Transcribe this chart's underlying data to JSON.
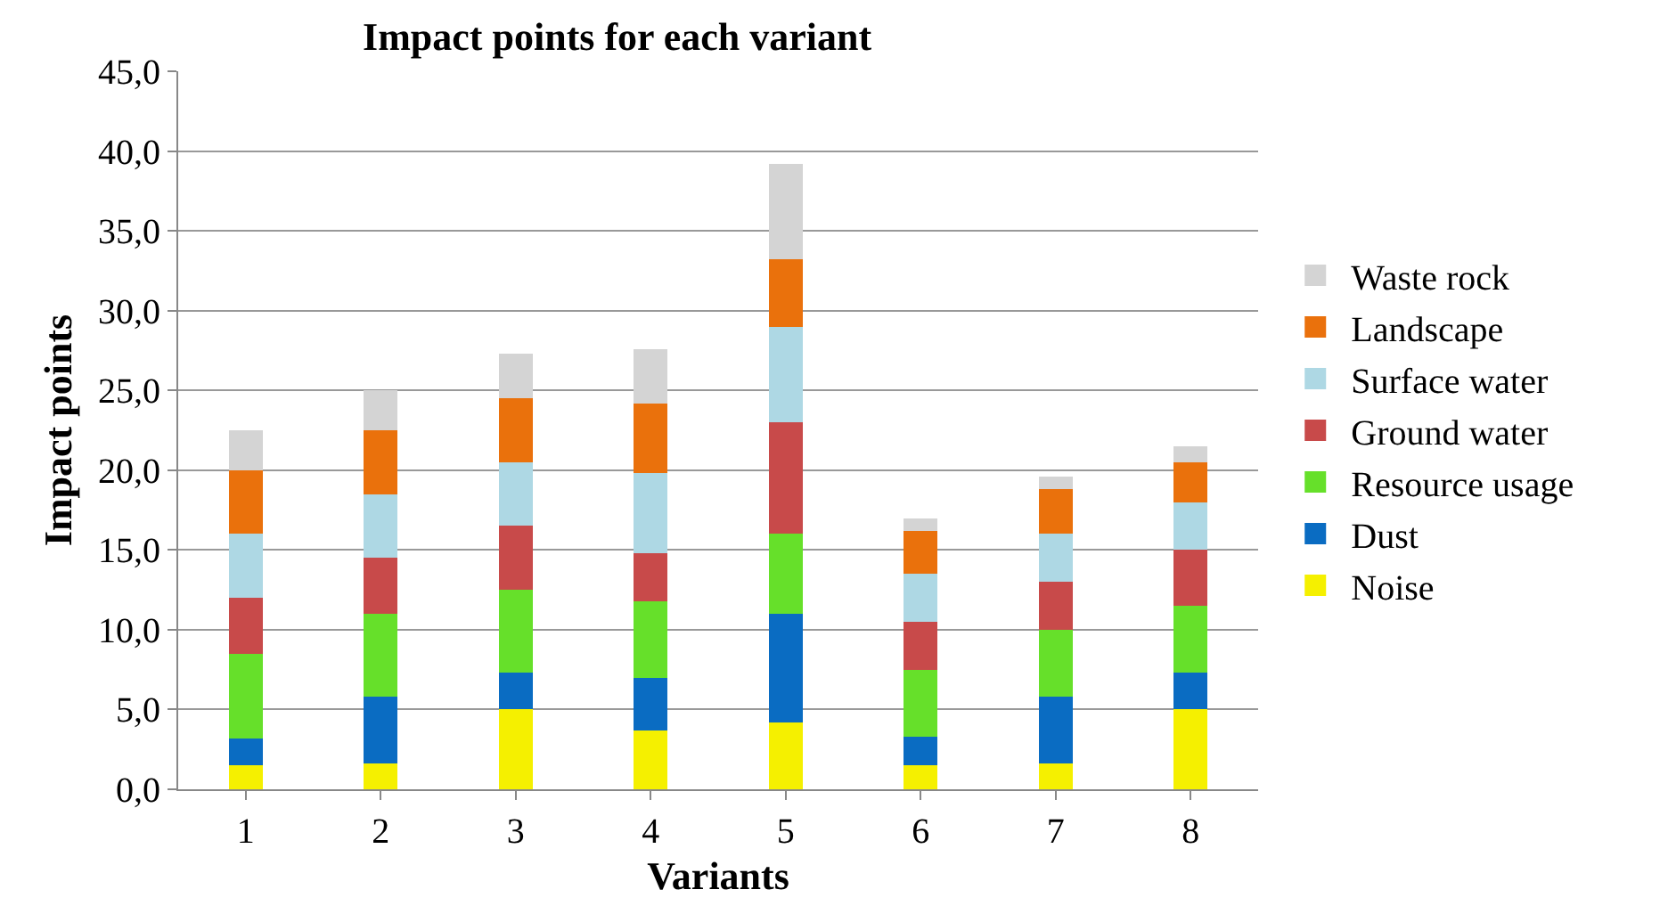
{
  "chart_data": {
    "type": "bar",
    "title": "Impact points for each variant",
    "xlabel": "Variants",
    "ylabel": "Impact points",
    "categories": [
      "1",
      "2",
      "3",
      "4",
      "5",
      "6",
      "7",
      "8"
    ],
    "stacked": true,
    "series": [
      {
        "name": "Noise",
        "color": "#f5f000",
        "values": [
          1.5,
          1.6,
          5,
          3.7,
          4.2,
          1.5,
          1.6,
          5
        ]
      },
      {
        "name": "Dust",
        "color": "#0a6cc2",
        "values": [
          1.7,
          4.2,
          2.3,
          3.3,
          6.8,
          1.8,
          4.2,
          2.3
        ]
      },
      {
        "name": "Resource usage",
        "color": "#66e02a",
        "values": [
          5.3,
          5.2,
          5.2,
          4.8,
          5,
          4.2,
          4.2,
          4.2
        ]
      },
      {
        "name": "Ground water",
        "color": "#c84a4a",
        "values": [
          3.5,
          3.5,
          4,
          3,
          7,
          3,
          3,
          3.5
        ]
      },
      {
        "name": "Surface water",
        "color": "#aed8e4",
        "values": [
          4,
          4,
          4,
          5,
          6,
          3,
          3,
          3
        ]
      },
      {
        "name": "Landscape",
        "color": "#ea710c",
        "values": [
          4,
          4,
          4,
          4.4,
          4.2,
          2.7,
          2.8,
          2.5
        ]
      },
      {
        "name": "Waste rock",
        "color": "#d4d4d4",
        "values": [
          2.5,
          2.5,
          2.8,
          3.4,
          6,
          0.8,
          0.8,
          1
        ]
      }
    ],
    "ylim": [
      0,
      45
    ],
    "yticks": [
      {
        "value": 0,
        "label": "0,0"
      },
      {
        "value": 5,
        "label": "5,0"
      },
      {
        "value": 10,
        "label": "10,0"
      },
      {
        "value": 15,
        "label": "15,0"
      },
      {
        "value": 20,
        "label": "20,0"
      },
      {
        "value": 25,
        "label": "25,0"
      },
      {
        "value": 30,
        "label": "30,0"
      },
      {
        "value": 35,
        "label": "35,0"
      },
      {
        "value": 40,
        "label": "40,0"
      },
      {
        "value": 45,
        "label": "45,0"
      }
    ],
    "grid": "y",
    "legend": "right"
  }
}
